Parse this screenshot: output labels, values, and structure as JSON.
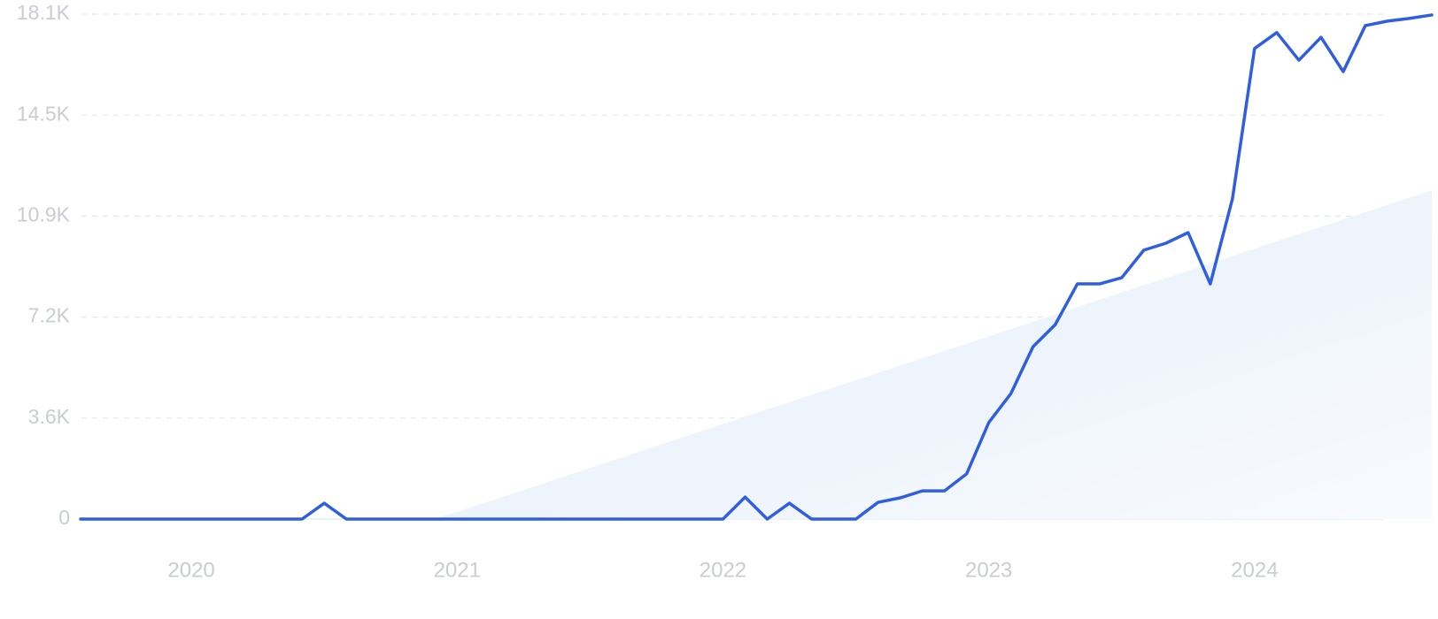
{
  "chart_data": {
    "type": "line",
    "categories": [
      null,
      null,
      null,
      null,
      null,
      "2020",
      null,
      null,
      null,
      null,
      null,
      null,
      null,
      null,
      null,
      null,
      null,
      "2021",
      null,
      null,
      null,
      null,
      null,
      null,
      null,
      null,
      null,
      null,
      null,
      "2022",
      null,
      null,
      null,
      null,
      null,
      null,
      null,
      null,
      null,
      null,
      null,
      "2023",
      null,
      null,
      null,
      null,
      null,
      null,
      null,
      null,
      null,
      null,
      null,
      "2024",
      null,
      null,
      null,
      null,
      null,
      null,
      null,
      null
    ],
    "series": [
      {
        "type": "area",
        "color": "#e6effc",
        "values": [
          null,
          null,
          null,
          null,
          null,
          null,
          null,
          null,
          null,
          null,
          null,
          null,
          null,
          null,
          null,
          null,
          0,
          262,
          524,
          786,
          1048,
          1310,
          1572,
          1834,
          2096,
          2358,
          2620,
          2882,
          3144,
          3406,
          3668,
          3930,
          4192,
          4454,
          4716,
          4978,
          5240,
          5502,
          5764,
          6026,
          6288,
          6550,
          6812,
          7074,
          7336,
          7598,
          7860,
          8122,
          8384,
          8646,
          8908,
          9170,
          9432,
          9694,
          9956,
          10218,
          10480,
          10742,
          11004,
          11266,
          11528,
          11790
        ]
      },
      {
        "type": "line",
        "color": "#2f5fe0",
        "values": [
          0,
          0,
          0,
          0,
          0,
          0,
          0,
          0,
          0,
          0,
          0,
          570,
          0,
          0,
          0,
          0,
          0,
          0,
          0,
          0,
          0,
          0,
          0,
          0,
          0,
          0,
          0,
          0,
          0,
          0,
          790,
          0,
          570,
          0,
          0,
          0,
          600,
          760,
          1010,
          1010,
          1620,
          3460,
          4500,
          6180,
          6970,
          8430,
          8430,
          8650,
          9640,
          9890,
          10270,
          8430,
          11480,
          16870,
          17440,
          16450,
          17270,
          16040,
          17690,
          17850,
          17950,
          18070
        ]
      }
    ],
    "ylim": [
      0,
      18100
    ],
    "yticks": [
      0,
      {
        "value": 3620,
        "label": "3.6K"
      },
      {
        "value": 7240,
        "label": "7.2K"
      },
      {
        "value": 10860,
        "label": "10.9K"
      },
      {
        "value": 14480,
        "label": "14.5K"
      },
      {
        "value": 18100,
        "label": "18.1K"
      }
    ],
    "grid": true
  }
}
